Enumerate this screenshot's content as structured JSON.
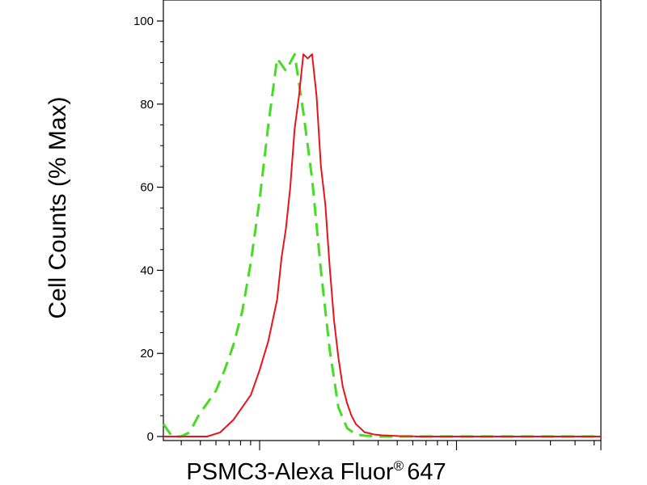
{
  "chart_data": {
    "type": "line",
    "title": "",
    "ylabel": "Cell Counts (% Max)",
    "xlabel": {
      "main": "PSMC3-Alexa Fluor",
      "superscript": "®",
      "suffix": "647"
    },
    "y_ticks": [
      "0",
      "20",
      "40",
      "60",
      "80",
      "100"
    ],
    "ylim": [
      0,
      100
    ],
    "x_scale": "log",
    "x_tick_labels": [],
    "grid": false,
    "series": [
      {
        "color": "#44dd22",
        "style": "dashed",
        "x": [
          0.0,
          0.02,
          0.04,
          0.06,
          0.08,
          0.1,
          0.12,
          0.14,
          0.16,
          0.18,
          0.2,
          0.22,
          0.24,
          0.26,
          0.28,
          0.3,
          0.32,
          0.34,
          0.36,
          0.38,
          0.4,
          0.42,
          0.44,
          0.46,
          0.48,
          0.5,
          0.52,
          0.54,
          0.56,
          0.58,
          0.6,
          0.62,
          0.64,
          0.66,
          0.68,
          0.7,
          1.0
        ],
        "y": [
          3,
          0,
          0,
          1,
          5,
          8,
          11,
          16,
          22,
          30,
          42,
          57,
          75,
          91,
          88,
          92,
          78,
          62,
          40,
          21,
          7,
          2,
          0.5,
          0.2,
          0.1,
          0,
          0,
          0,
          0,
          0,
          0,
          0,
          0,
          0,
          0,
          0,
          0
        ]
      },
      {
        "color": "#e8141c",
        "style": "solid",
        "x": [
          0.0,
          0.06,
          0.1,
          0.13,
          0.16,
          0.2,
          0.22,
          0.24,
          0.26,
          0.27,
          0.28,
          0.29,
          0.3,
          0.31,
          0.32,
          0.33,
          0.34,
          0.35,
          0.36,
          0.37,
          0.38,
          0.39,
          0.4,
          0.41,
          0.42,
          0.43,
          0.44,
          0.45,
          0.46,
          0.47,
          0.48,
          0.5,
          0.52,
          0.54,
          0.56,
          0.58,
          0.6,
          0.65,
          0.7,
          0.8,
          0.9,
          1.0
        ],
        "y": [
          0,
          0,
          0,
          1,
          4,
          10,
          16,
          23,
          33,
          43,
          50,
          60,
          74,
          82,
          92,
          91,
          92,
          82,
          65,
          56,
          41,
          28,
          19,
          12,
          8,
          5,
          3,
          2,
          1,
          0.8,
          0.5,
          0.3,
          0.2,
          0.1,
          0.1,
          0,
          0,
          0,
          0,
          0,
          0,
          0
        ]
      }
    ]
  }
}
